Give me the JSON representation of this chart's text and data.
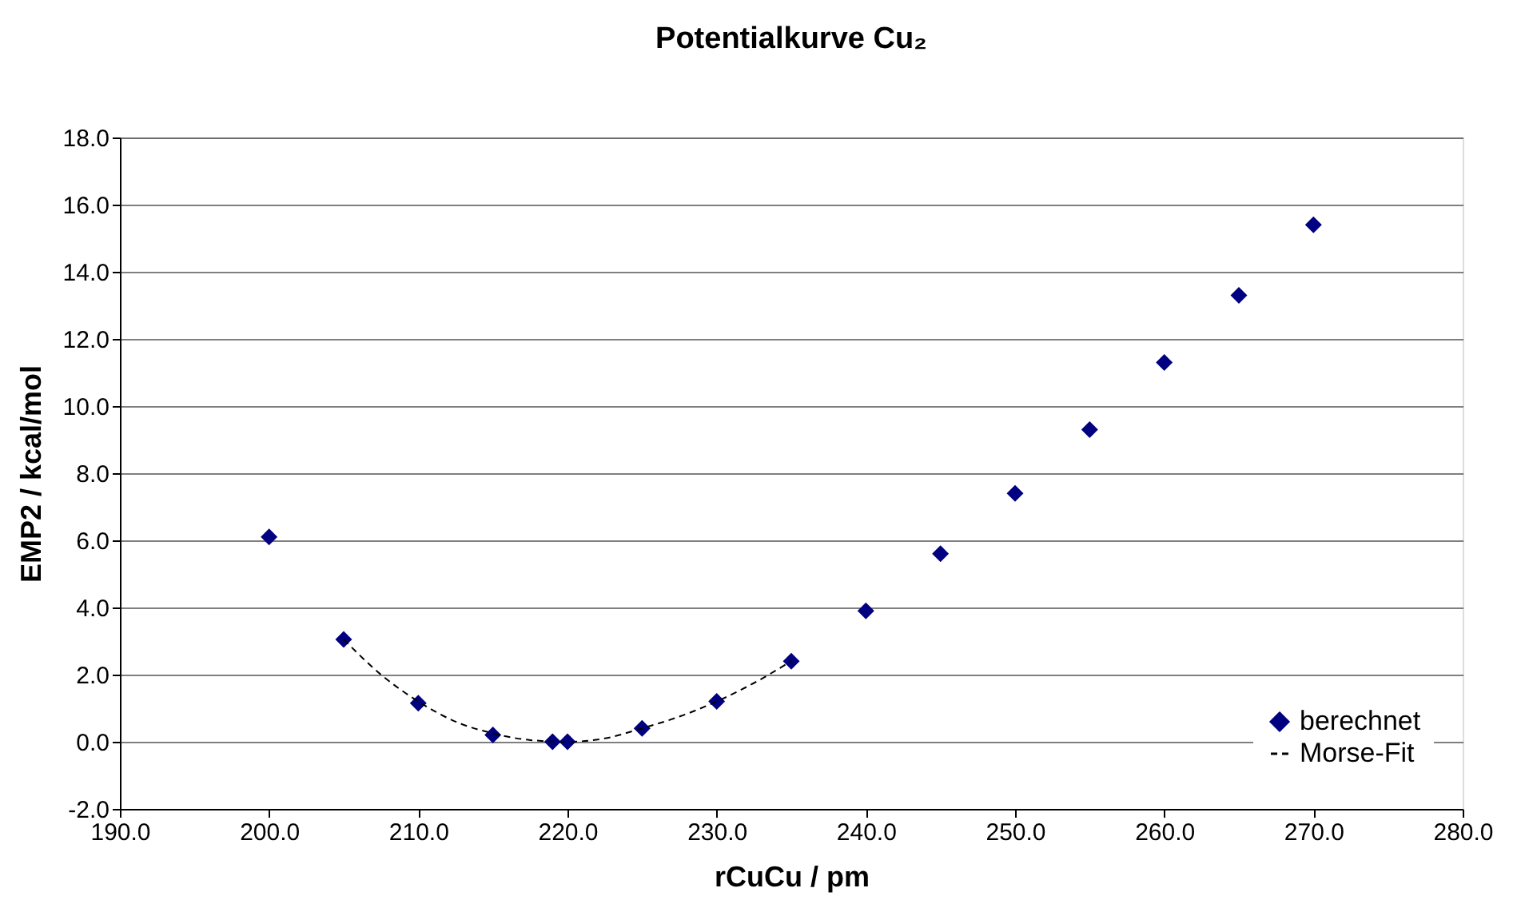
{
  "chart_data": {
    "type": "scatter",
    "title": "Potentialkurve Cu₂",
    "xlabel": "rCuCu / pm",
    "ylabel": "EMP2 / kcal/mol",
    "series": [
      {
        "name": "berechnet",
        "color": "#000080",
        "marker": "diamond",
        "x": [
          200,
          205,
          210,
          215,
          219,
          220,
          225,
          230,
          235,
          240,
          245,
          250,
          255,
          260,
          265,
          270
        ],
        "values": [
          6.1,
          3.05,
          1.15,
          0.2,
          0.0,
          0.0,
          0.4,
          1.2,
          2.4,
          3.9,
          5.6,
          7.4,
          9.3,
          11.3,
          13.3,
          15.4
        ]
      },
      {
        "name": "Morse-Fit",
        "type": "line",
        "color": "#000000",
        "line_style": "dashed",
        "marker": "none",
        "x": [
          205,
          207.5,
          210,
          212.5,
          215,
          217.5,
          220,
          222.5,
          225,
          227.5,
          230,
          232.5,
          235
        ],
        "values": [
          3.05,
          2.0,
          1.2,
          0.6,
          0.25,
          0.05,
          0.0,
          0.1,
          0.4,
          0.75,
          1.2,
          1.75,
          2.4
        ]
      }
    ],
    "xlim": [
      190,
      280
    ],
    "xticks": [
      {
        "value": 190,
        "label": "190.0"
      },
      {
        "value": 200,
        "label": "200.0"
      },
      {
        "value": 210,
        "label": "210.0"
      },
      {
        "value": 220,
        "label": "220.0"
      },
      {
        "value": 230,
        "label": "230.0"
      },
      {
        "value": 240,
        "label": "240.0"
      },
      {
        "value": 250,
        "label": "250.0"
      },
      {
        "value": 260,
        "label": "260.0"
      },
      {
        "value": 270,
        "label": "270.0"
      },
      {
        "value": 280,
        "label": "280.0"
      }
    ],
    "ylim": [
      -2,
      18
    ],
    "yticks": [
      {
        "value": -2,
        "label": "-2.0"
      },
      {
        "value": 0,
        "label": "0.0"
      },
      {
        "value": 2,
        "label": "2.0"
      },
      {
        "value": 4,
        "label": "4.0"
      },
      {
        "value": 6,
        "label": "6.0"
      },
      {
        "value": 8,
        "label": "8.0"
      },
      {
        "value": 10,
        "label": "10.0"
      },
      {
        "value": 12,
        "label": "12.0"
      },
      {
        "value": 14,
        "label": "14.0"
      },
      {
        "value": 16,
        "label": "16.0"
      },
      {
        "value": 18,
        "label": "18.0"
      }
    ],
    "grid": "y",
    "legend": "bottom right"
  }
}
